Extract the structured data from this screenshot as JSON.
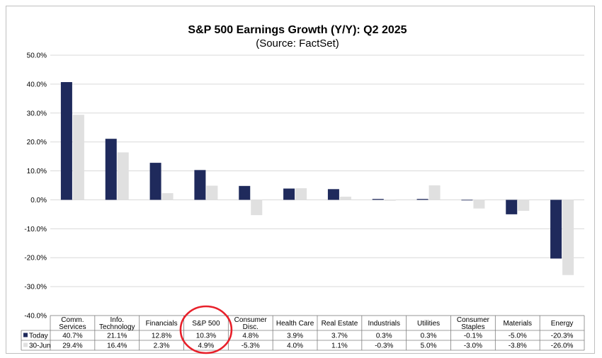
{
  "chart_data": {
    "type": "bar",
    "title": "S&P 500 Earnings Growth (Y/Y): Q2 2025",
    "subtitle": "(Source: FactSet)",
    "categories": [
      [
        "Comm.",
        "Services"
      ],
      [
        "Info.",
        "Technology"
      ],
      [
        "Financials"
      ],
      [
        "S&P 500"
      ],
      [
        "Consumer",
        "Disc."
      ],
      [
        "Health Care"
      ],
      [
        "Real Estate"
      ],
      [
        "Industrials"
      ],
      [
        "Utilities"
      ],
      [
        "Consumer",
        "Staples"
      ],
      [
        "Materials"
      ],
      [
        "Energy"
      ]
    ],
    "series": [
      {
        "name": "Today",
        "color": "#1f2a5c",
        "values": [
          40.7,
          21.1,
          12.8,
          10.3,
          4.8,
          3.9,
          3.7,
          0.3,
          0.3,
          -0.1,
          -5.0,
          -20.3
        ],
        "labels": [
          "40.7%",
          "21.1%",
          "12.8%",
          "10.3%",
          "4.8%",
          "3.9%",
          "3.7%",
          "0.3%",
          "0.3%",
          "-0.1%",
          "-5.0%",
          "-20.3%"
        ]
      },
      {
        "name": "30-Jun",
        "color": "#e0e0e0",
        "values": [
          29.4,
          16.4,
          2.3,
          4.9,
          -5.3,
          4.0,
          1.1,
          -0.3,
          5.0,
          -3.0,
          -3.8,
          -26.0
        ],
        "labels": [
          "29.4%",
          "16.4%",
          "2.3%",
          "4.9%",
          "-5.3%",
          "4.0%",
          "1.1%",
          "-0.3%",
          "5.0%",
          "-3.0%",
          "-3.8%",
          "-26.0%"
        ]
      }
    ],
    "ylim": [
      -40,
      50
    ],
    "yticks": [
      "50.0%",
      "40.0%",
      "30.0%",
      "20.0%",
      "10.0%",
      "0.0%",
      "-10.0%",
      "-20.0%",
      "-30.0%",
      "-40.0%"
    ],
    "ytick_values": [
      50,
      40,
      30,
      20,
      10,
      0,
      -10,
      -20,
      -30,
      -40
    ],
    "grid": true,
    "legend": "data-table",
    "highlight": {
      "category_index": 3,
      "shape": "circle",
      "color": "#e8202a"
    }
  }
}
